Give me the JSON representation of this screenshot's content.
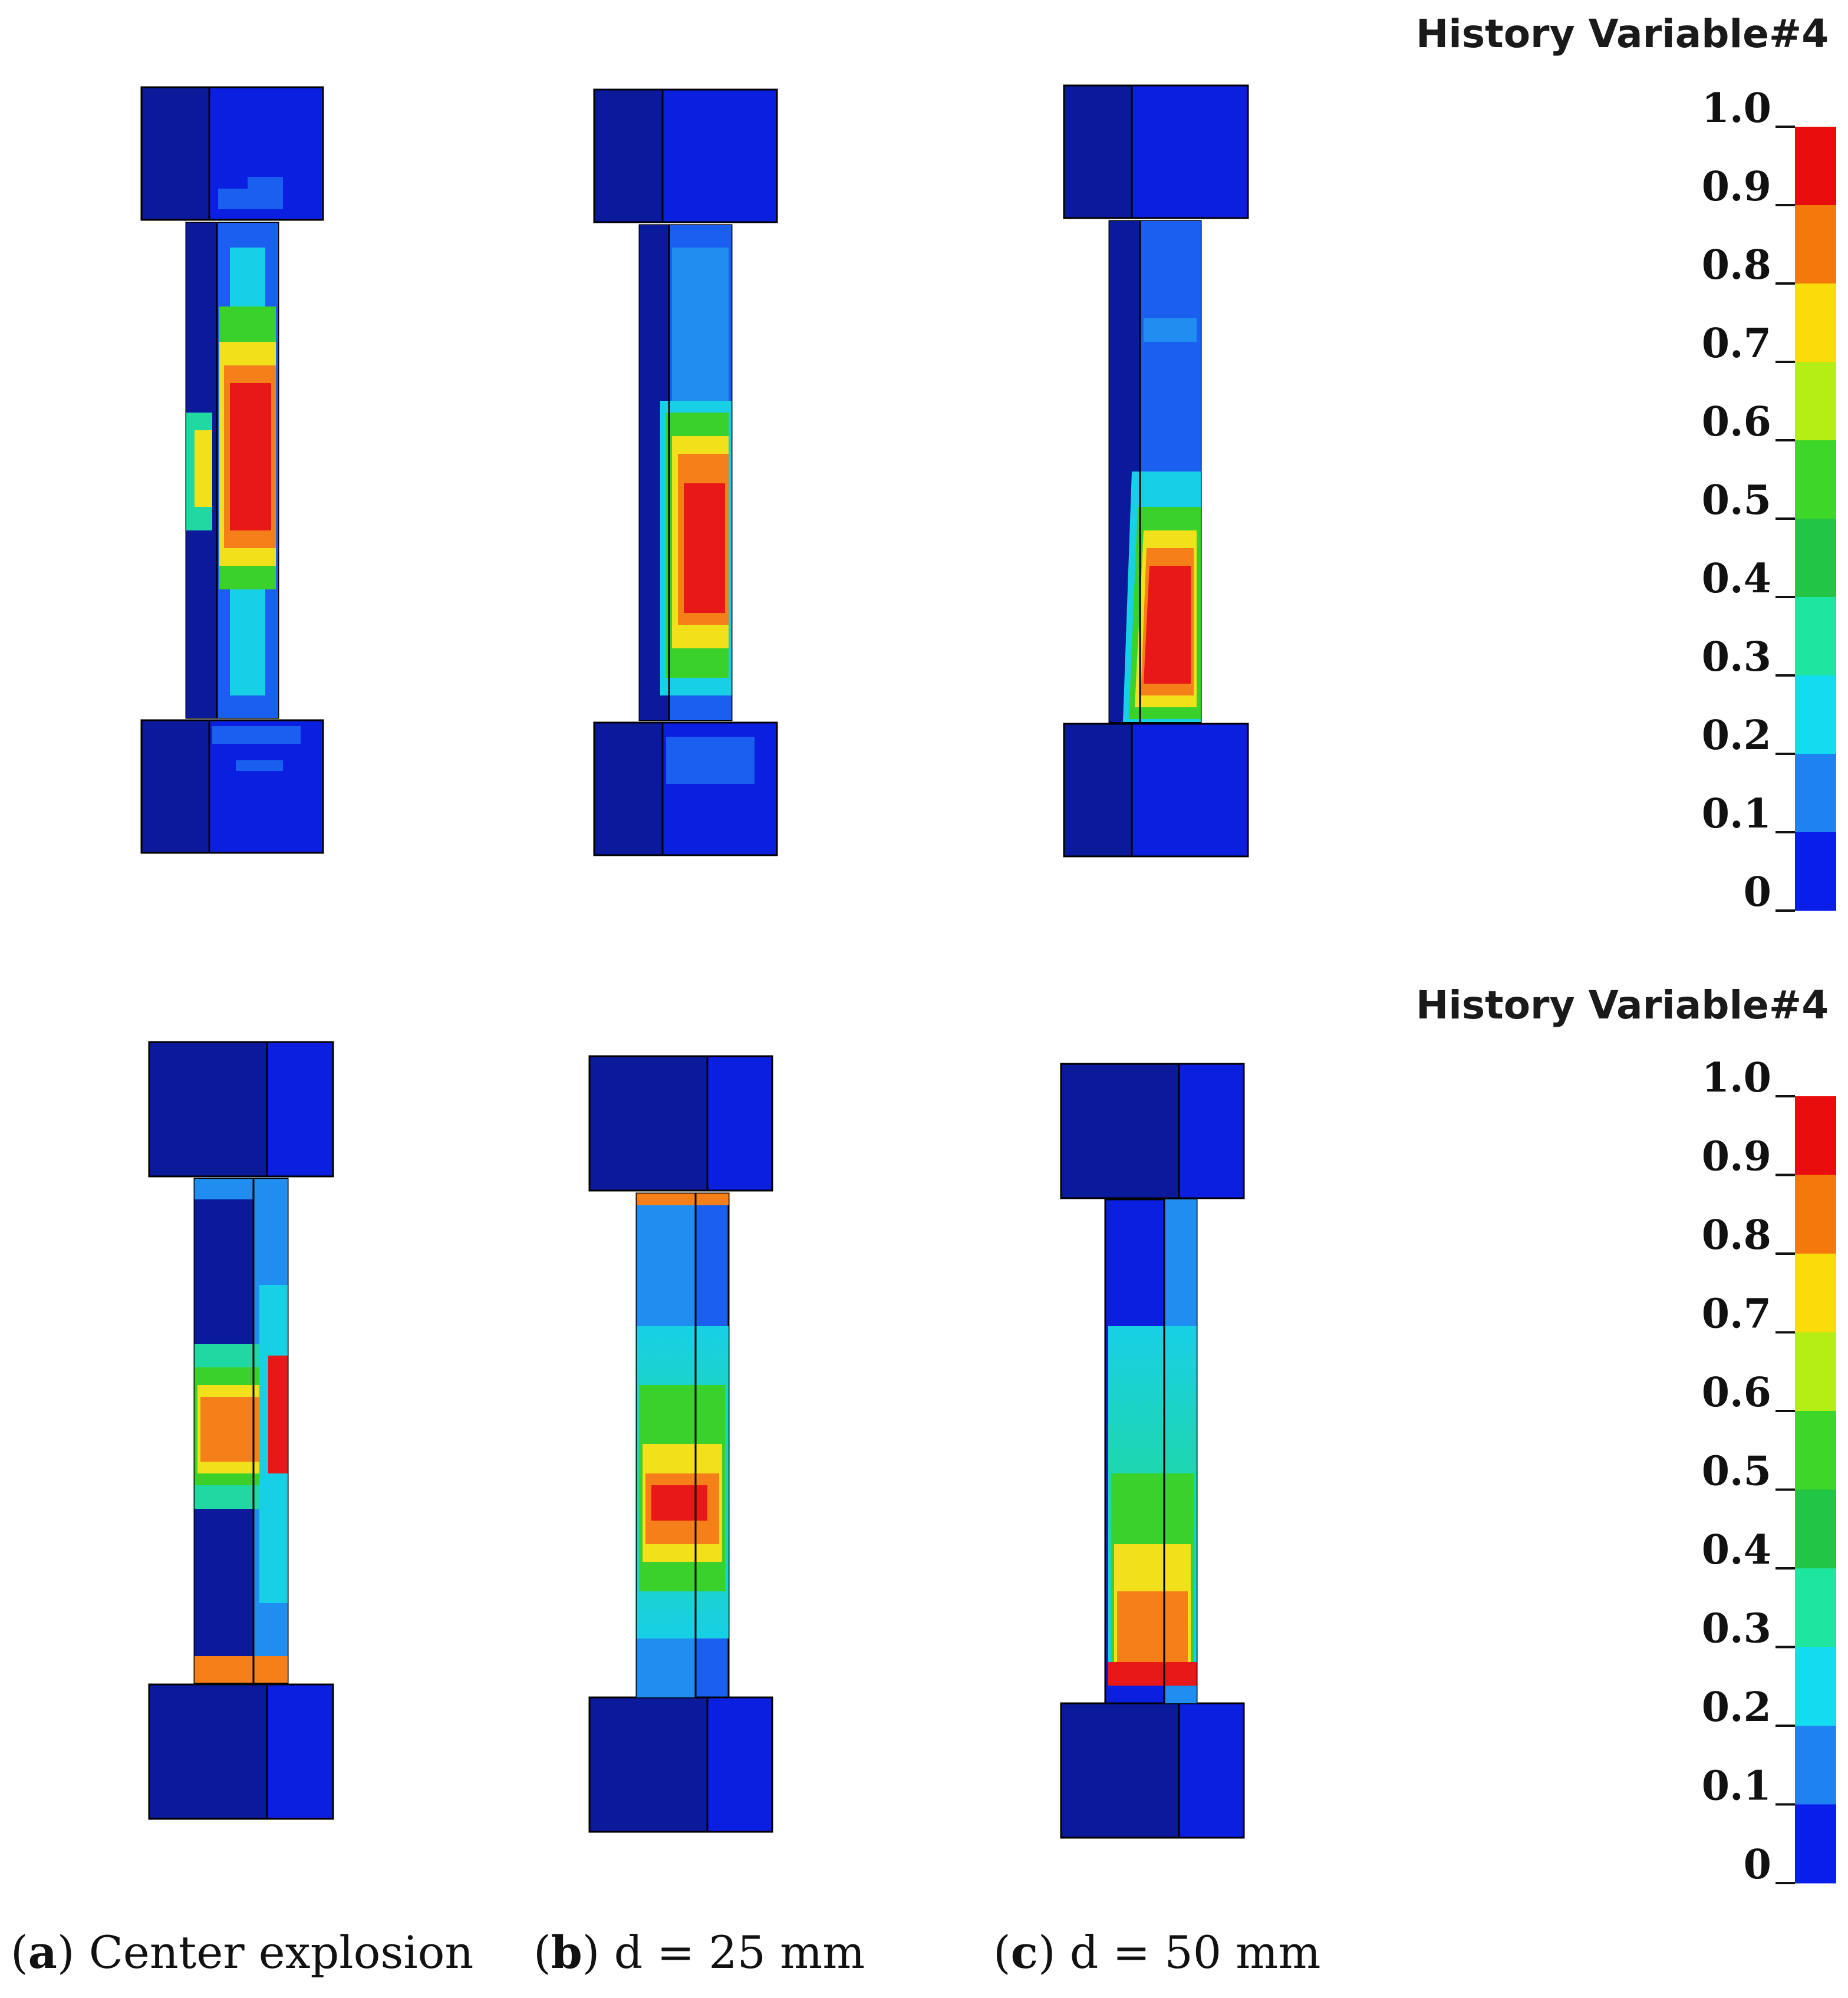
{
  "colorbars": [
    {
      "title": "History Variable#4",
      "ticks": [
        "1.0",
        "0.9",
        "0.8",
        "0.7",
        "0.6",
        "0.5",
        "0.4",
        "0.3",
        "0.2",
        "0.1",
        "0"
      ]
    },
    {
      "title": "History Variable#4",
      "ticks": [
        "1.0",
        "0.9",
        "0.8",
        "0.7",
        "0.6",
        "0.5",
        "0.4",
        "0.3",
        "0.2",
        "0.1",
        "0"
      ]
    }
  ],
  "colorbar_colors": [
    "#e80c0c",
    "#f5780d",
    "#fadc0a",
    "#b4ee14",
    "#3cd728",
    "#22c545",
    "#1ee6a0",
    "#14dcf0",
    "#1e82f0",
    "#0a1eeb"
  ],
  "captions": [
    {
      "letter": "a",
      "open": "(",
      "close": ")",
      "text": " Center explosion"
    },
    {
      "letter": "b",
      "open": "(",
      "close": ")",
      "text": " d = 25 mm"
    },
    {
      "letter": "c",
      "open": "(",
      "close": ")",
      "text": " d = 50 mm"
    }
  ],
  "palette": {
    "dark_blue": "#0a1a9a",
    "blue": "#0b1fe0",
    "mid_blue": "#1a5ff0",
    "light_blue": "#1f8ef0",
    "cyan": "#18d0e6",
    "teal": "#1fd8a2",
    "green": "#3ad12a",
    "yellow": "#f2e01a",
    "orange": "#f5801a",
    "red": "#e81818"
  }
}
